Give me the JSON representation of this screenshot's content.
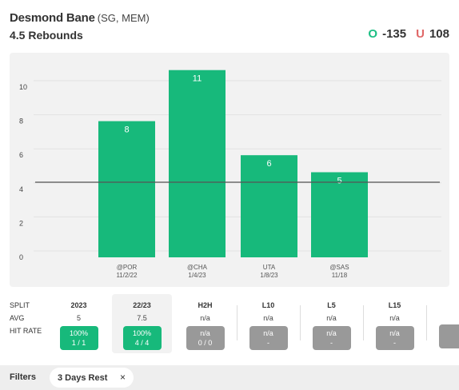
{
  "header": {
    "player_name": "Desmond Bane",
    "player_pos": "(SG, MEM)",
    "prop": "4.5 Rebounds",
    "over_label": "O",
    "over_odds": "-135",
    "under_label": "U",
    "under_odds": "108"
  },
  "chart_data": {
    "type": "bar",
    "categories": [
      "@POR",
      "@CHA",
      "UTA",
      "@SAS"
    ],
    "dates": [
      "11/2/22",
      "1/4/23",
      "1/8/23",
      "11/18"
    ],
    "values": [
      8,
      11,
      6,
      5
    ],
    "line": 4.5,
    "yticks": [
      0,
      2,
      4,
      6,
      8,
      10
    ],
    "ylim": [
      0,
      11
    ],
    "bar_color": "#17b97b",
    "grid": true
  },
  "splits": {
    "row_labels": [
      "SPLIT",
      "AVG",
      "HIT RATE"
    ],
    "columns": [
      {
        "label": "2023",
        "avg": "5",
        "rate": "100%",
        "detail": "1 / 1",
        "status": "green"
      },
      {
        "label": "22/23",
        "avg": "7.5",
        "rate": "100%",
        "detail": "4 / 4",
        "status": "green"
      },
      {
        "label": "H2H",
        "avg": "n/a",
        "rate": "n/a",
        "detail": "0 / 0",
        "status": "gray"
      },
      {
        "label": "L10",
        "avg": "n/a",
        "rate": "n/a",
        "detail": "-",
        "status": "gray"
      },
      {
        "label": "L5",
        "avg": "n/a",
        "rate": "n/a",
        "detail": "-",
        "status": "gray"
      },
      {
        "label": "L15",
        "avg": "n/a",
        "rate": "n/a",
        "detail": "-",
        "status": "gray"
      }
    ]
  },
  "filters": {
    "label": "Filters",
    "chip": "3 Days Rest",
    "chip_close": "×"
  }
}
